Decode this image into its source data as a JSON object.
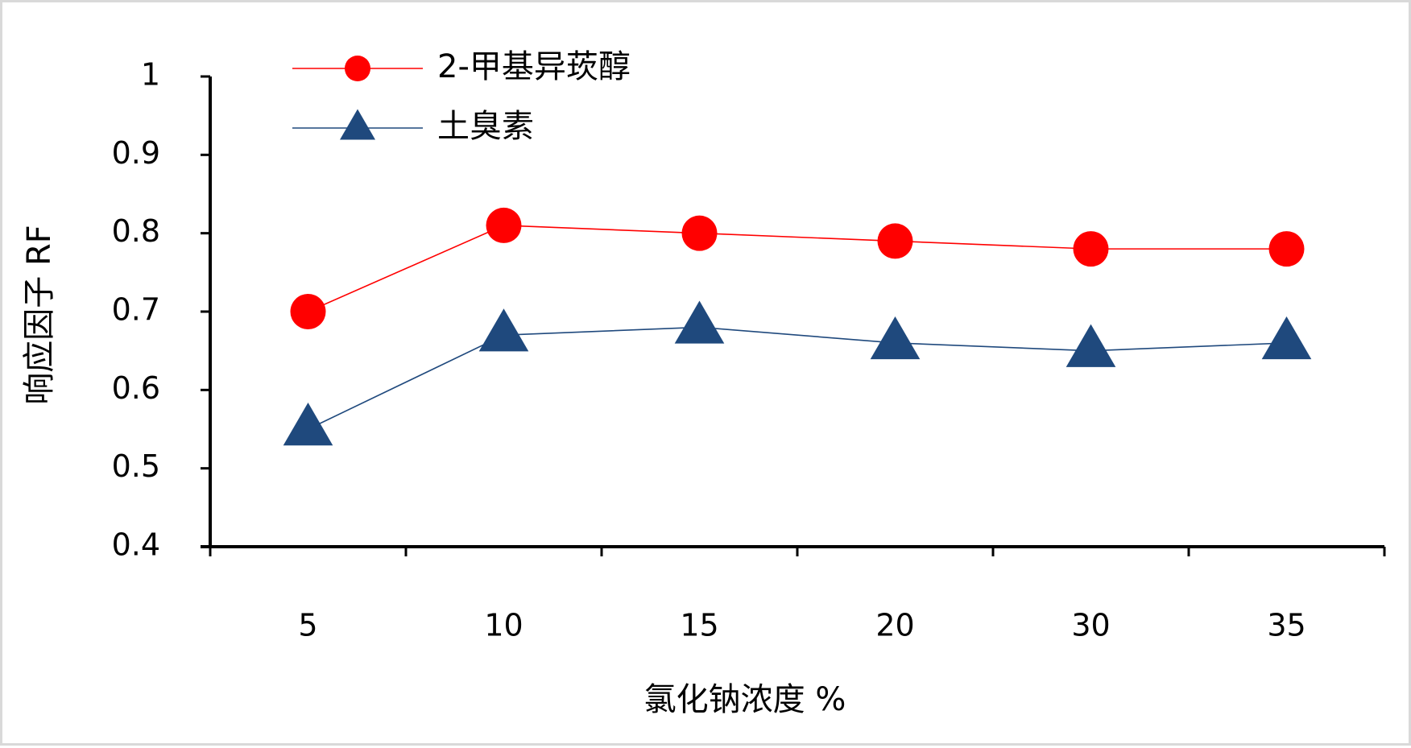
{
  "chart_data": {
    "type": "line",
    "categories": [
      "5",
      "10",
      "15",
      "20",
      "30",
      "35"
    ],
    "series": [
      {
        "name": "2-甲基异莰醇",
        "values": [
          0.7,
          0.81,
          0.8,
          0.79,
          0.78,
          0.78
        ],
        "color": "#ff0000",
        "marker": "circle"
      },
      {
        "name": "土臭素",
        "values": [
          0.55,
          0.67,
          0.68,
          0.66,
          0.65,
          0.66
        ],
        "color": "#1f497d",
        "marker": "triangle"
      }
    ],
    "xlabel": "氯化钠浓度 %",
    "ylabel": "响应因子 RF",
    "ylim": [
      0.4,
      1
    ],
    "yticks": [
      "0.4",
      "0.5",
      "0.6",
      "0.7",
      "0.8",
      "0.9",
      "1"
    ],
    "grid": false,
    "legend_position": "top-left"
  }
}
